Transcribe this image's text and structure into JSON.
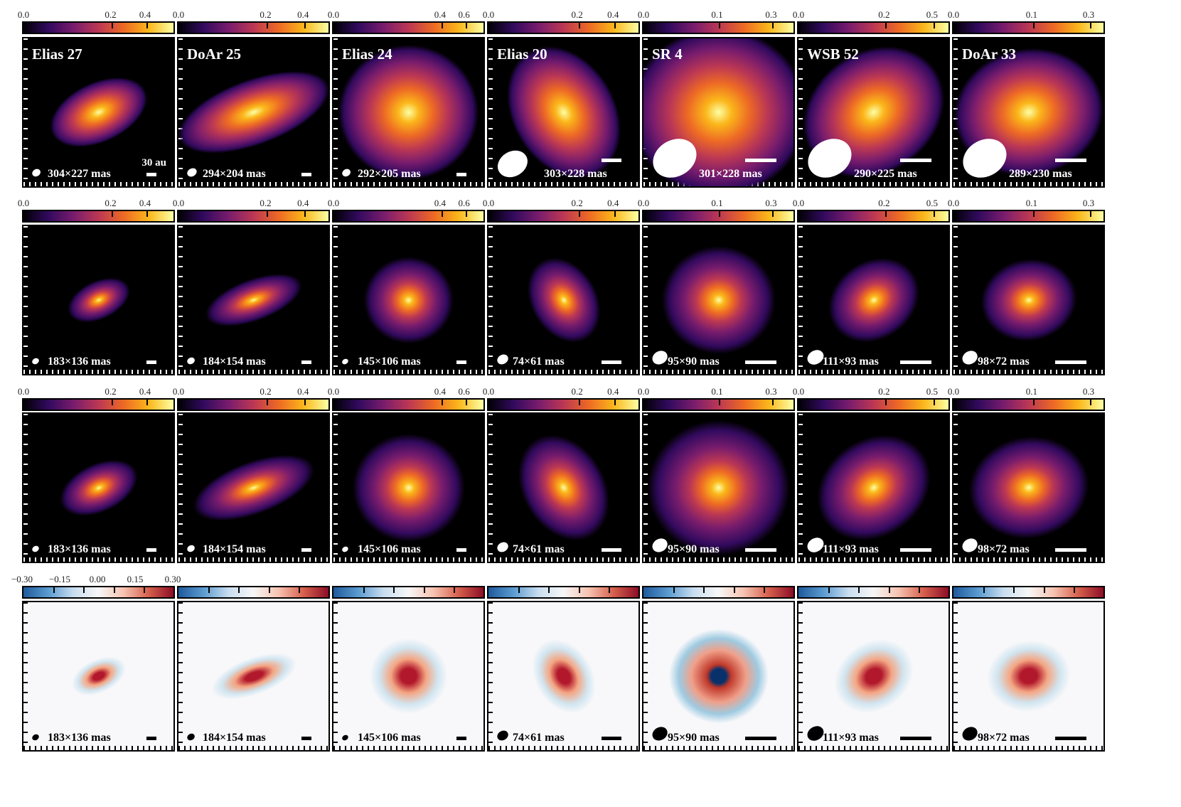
{
  "colormaps": {
    "intensity": "inferno",
    "residual": "RdBu_r"
  },
  "scale_bar_label": "30 au",
  "targets": [
    {
      "name": "Elias 27",
      "beams": [
        "304×227 mas",
        "183×136 mas",
        "183×136 mas",
        "183×136 mas"
      ],
      "ticks": [
        "0.0",
        "0.2",
        "0.4"
      ]
    },
    {
      "name": "DoAr 25",
      "beams": [
        "294×204 mas",
        "184×154 mas",
        "184×154 mas",
        "184×154 mas"
      ],
      "ticks": [
        "0.0",
        "0.2",
        "0.4"
      ]
    },
    {
      "name": "Elias 24",
      "beams": [
        "292×205 mas",
        "145×106 mas",
        "145×106 mas",
        "145×106 mas"
      ],
      "ticks": [
        "0.0",
        "0.4",
        "0.6"
      ]
    },
    {
      "name": "Elias 20",
      "beams": [
        "303×228 mas",
        "74×61 mas",
        "74×61 mas",
        "74×61 mas"
      ],
      "ticks": [
        "0.0",
        "0.2",
        "0.4"
      ]
    },
    {
      "name": "SR 4",
      "beams": [
        "301×228 mas",
        "95×90 mas",
        "95×90 mas",
        "95×90 mas"
      ],
      "ticks": [
        "0.0",
        "0.1",
        "0.3"
      ]
    },
    {
      "name": "WSB 52",
      "beams": [
        "290×225 mas",
        "111×93 mas",
        "111×93 mas",
        "111×93 mas"
      ],
      "ticks": [
        "0.0",
        "0.2",
        "0.5"
      ]
    },
    {
      "name": "DoAr 33",
      "beams": [
        "289×230 mas",
        "98×72 mas",
        "98×72 mas",
        "98×72 mas"
      ],
      "ticks": [
        "0.0",
        "0.1",
        "0.3"
      ]
    }
  ],
  "residual_ticks": [
    "−0.30",
    "−0.15",
    "0.00",
    "0.15",
    "0.30"
  ]
}
